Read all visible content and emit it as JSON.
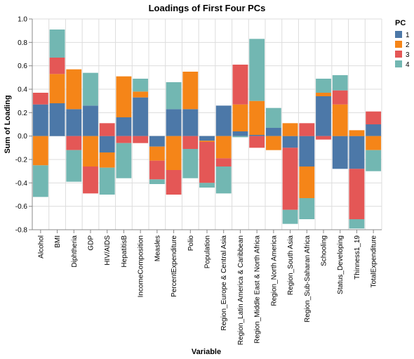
{
  "chart_data": {
    "type": "bar",
    "stacked": true,
    "title": "Loadings of First Four PCs",
    "xlabel": "Variable",
    "ylabel": "Sum of Loading",
    "ylim": [
      -0.8,
      1.0
    ],
    "yticks": [
      "1.0",
      "0.8",
      "0.6",
      "0.4",
      "0.2",
      "0.0",
      "-0.2",
      "-0.4",
      "-0.6",
      "-0.8"
    ],
    "grid": true,
    "legend": {
      "title": "PC",
      "position": "top-right"
    },
    "categories": [
      "Alcohol",
      "BMI",
      "Diphtheria",
      "GDP",
      "HIV/AIDS",
      "HepatitisB",
      "IncomeComposition",
      "Measles",
      "PercentExpenditure",
      "Polio",
      "Population",
      "Region_Europe & Central Asia",
      "Region_Latin America & Caribbean",
      "Region_Middle East & North Africa",
      "Region_North America",
      "Region_South Asia",
      "Region_Sub-Saharan Africa",
      "Schooling",
      "Status_Developing",
      "Thinness1_19",
      "TotalExpenditure"
    ],
    "series": [
      {
        "name": "1",
        "color": "#4c78a8",
        "values": [
          0.27,
          0.28,
          0.23,
          0.26,
          -0.14,
          0.16,
          0.33,
          -0.09,
          0.23,
          0.23,
          -0.04,
          0.26,
          0.04,
          0.01,
          0.07,
          -0.1,
          -0.26,
          0.34,
          -0.28,
          -0.28,
          0.1
        ]
      },
      {
        "name": "2",
        "color": "#f58518",
        "values": [
          -0.25,
          0.25,
          0.34,
          -0.26,
          -0.13,
          0.35,
          0.05,
          -0.12,
          -0.29,
          0.32,
          -0.01,
          -0.19,
          0.23,
          0.29,
          -0.12,
          0.11,
          -0.27,
          0.03,
          0.27,
          0.05,
          -0.12
        ]
      },
      {
        "name": "3",
        "color": "#e45756",
        "values": [
          0.1,
          0.14,
          -0.12,
          -0.23,
          0.11,
          -0.06,
          -0.06,
          -0.16,
          -0.21,
          -0.11,
          -0.35,
          -0.07,
          0.34,
          -0.1,
          0.0,
          -0.53,
          0.11,
          -0.03,
          0.12,
          -0.43,
          0.11
        ]
      },
      {
        "name": "4",
        "color": "#72b7b2",
        "values": [
          -0.27,
          0.24,
          -0.27,
          0.28,
          -0.23,
          -0.3,
          0.11,
          -0.04,
          0.23,
          -0.25,
          -0.04,
          -0.23,
          -0.01,
          0.53,
          0.17,
          -0.12,
          -0.18,
          0.12,
          0.13,
          -0.08,
          -0.18
        ]
      }
    ]
  }
}
